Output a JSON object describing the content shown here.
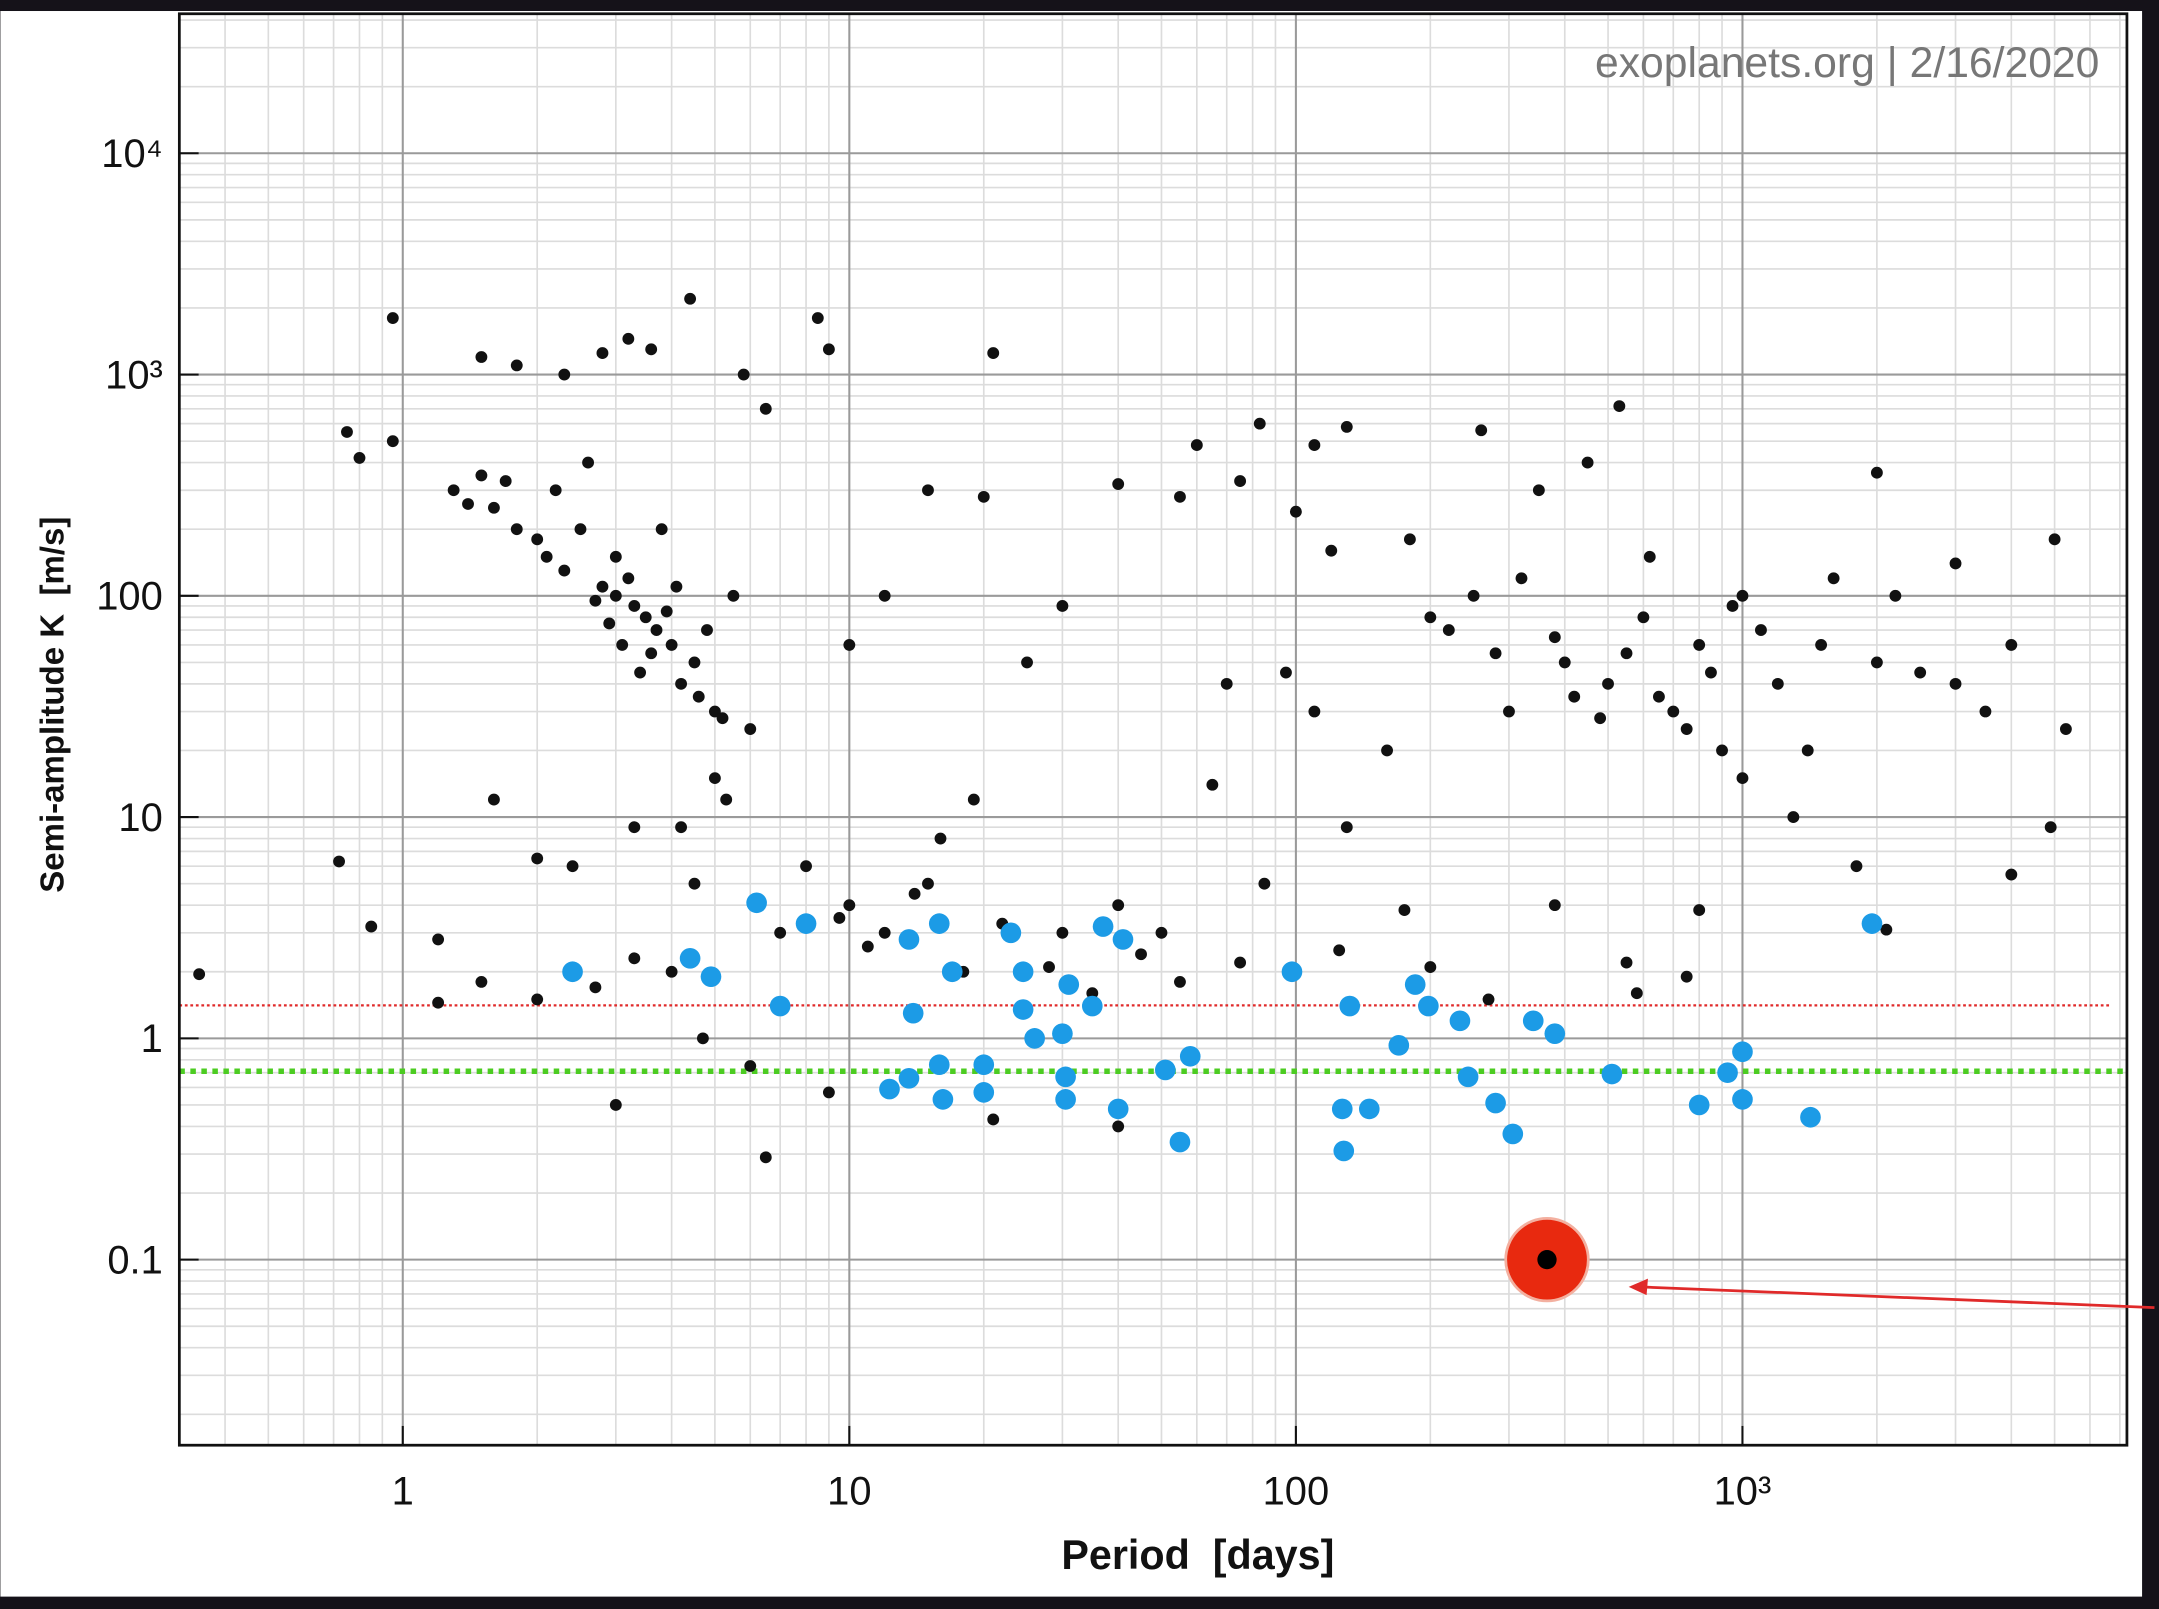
{
  "chart_data": {
    "type": "scatter",
    "annotation": "exoplanets.org | 2/16/2020",
    "x_label": "Period  [days]",
    "y_label": "Semi-amplitude K  [m/s]",
    "x_log": true,
    "y_log": true,
    "grid": true,
    "xlim": [
      0.316,
      7260
    ],
    "ylim": [
      0.0145,
      42700
    ],
    "xticks": [
      1,
      10,
      100,
      {
        "value": 1000,
        "label": "10³"
      }
    ],
    "yticks": [
      0.1,
      1,
      10,
      100,
      {
        "value": 1000,
        "label": "10³"
      },
      {
        "value": 10000,
        "label": "10⁴"
      }
    ],
    "x_minor_ticks": [
      0.4,
      0.5,
      0.6,
      0.7,
      0.8,
      0.9,
      2,
      3,
      4,
      5,
      6,
      7,
      8,
      9,
      20,
      30,
      40,
      50,
      60,
      70,
      80,
      90,
      200,
      300,
      400,
      500,
      600,
      700,
      800,
      900,
      2000,
      3000,
      4000,
      5000,
      6000,
      7000
    ],
    "y_minor_ticks": [
      0.02,
      0.03,
      0.04,
      0.05,
      0.06,
      0.07,
      0.08,
      0.09,
      0.2,
      0.3,
      0.4,
      0.5,
      0.6,
      0.7,
      0.8,
      0.9,
      2,
      3,
      4,
      5,
      6,
      7,
      8,
      9,
      20,
      30,
      40,
      50,
      60,
      70,
      80,
      90,
      200,
      300,
      400,
      500,
      600,
      700,
      800,
      900,
      2000,
      3000,
      4000,
      5000,
      6000,
      7000,
      8000,
      9000,
      20000,
      30000,
      40000
    ],
    "reference_lines": [
      {
        "value": 1.41,
        "color": "#e02a2a",
        "style": "dotted"
      },
      {
        "value": 0.71,
        "color": "#4ccc22",
        "style": "dotted"
      }
    ],
    "series": [
      {
        "color": "#111111",
        "marker": "small",
        "x": [
          3,
          3.5,
          3.2,
          4,
          2.5,
          4.5,
          3,
          3.7,
          2.2,
          1.5,
          1.3,
          2,
          5,
          4.2,
          3.3,
          2.8,
          6,
          1.8,
          2.6,
          4.8,
          3.8,
          1.6,
          5.5,
          2.3,
          3.1,
          3.4,
          3.9,
          2.9,
          4.1,
          2.1,
          1.4,
          1.7,
          3.6,
          4.6,
          5.2,
          2.7,
          0.95,
          1.5,
          1.8,
          2.3,
          2.8,
          3.2,
          3.6,
          4.4,
          5.8,
          8.5,
          9,
          21,
          0.75,
          0.95,
          0.8,
          6.5,
          83,
          530,
          10,
          12,
          15,
          20,
          25,
          30,
          40,
          55,
          60,
          75,
          110,
          130,
          260,
          100,
          120,
          95,
          160,
          70,
          65,
          110,
          400,
          500,
          600,
          700,
          800,
          1000,
          1200,
          900,
          1500,
          2000,
          3000,
          4000,
          5000,
          5300,
          4900,
          4000,
          350,
          450,
          250,
          200,
          180,
          300,
          1000,
          1300,
          1800,
          2000,
          3000,
          2200,
          1600,
          550,
          650,
          750,
          850,
          1100,
          380,
          420,
          480,
          320,
          280,
          220,
          1400,
          2500,
          3500,
          620,
          950,
          7,
          8,
          10,
          12,
          15,
          18,
          25,
          30,
          40,
          50,
          55,
          75,
          85,
          125,
          130,
          175,
          200,
          270,
          380,
          550,
          580,
          750,
          800,
          2100,
          0.72,
          0.35,
          0.85,
          1.2,
          1.6,
          2,
          2.4,
          3,
          4,
          4.7,
          6,
          6.5,
          9,
          21,
          40,
          2.7,
          3.3,
          4.2,
          5.3,
          1.2,
          1.5,
          2,
          3.3,
          4.5,
          5,
          9.5,
          11,
          14,
          22,
          28,
          35,
          45,
          16,
          19
        ],
        "y": [
          100,
          80,
          120,
          60,
          200,
          50,
          150,
          70,
          300,
          350,
          300,
          180,
          30,
          40,
          90,
          110,
          25,
          200,
          400,
          70,
          200,
          250,
          100,
          130,
          60,
          45,
          85,
          75,
          110,
          150,
          260,
          330,
          55,
          35,
          28,
          95,
          1800,
          1200,
          1100,
          1000,
          1250,
          1450,
          1300,
          2200,
          1000,
          1800,
          1300,
          1250,
          550,
          500,
          420,
          700,
          600,
          720,
          60,
          100,
          300,
          280,
          50,
          90,
          320,
          280,
          480,
          330,
          480,
          580,
          560,
          240,
          160,
          45,
          20,
          40,
          14,
          30,
          50,
          40,
          80,
          30,
          60,
          100,
          40,
          20,
          60,
          50,
          40,
          60,
          180,
          25,
          9,
          5.5,
          300,
          400,
          100,
          80,
          180,
          30,
          15,
          10,
          6,
          360,
          140,
          100,
          120,
          55,
          35,
          25,
          45,
          70,
          65,
          35,
          28,
          120,
          55,
          70,
          20,
          45,
          30,
          150,
          90,
          3,
          6,
          4,
          3,
          5,
          2,
          2,
          3,
          4,
          3,
          1.8,
          2.2,
          5,
          2.5,
          9,
          3.8,
          2.1,
          1.5,
          4,
          2.2,
          1.6,
          1.9,
          3.8,
          3.1,
          6.3,
          1.95,
          3.2,
          2.8,
          12,
          6.5,
          6,
          0.5,
          2,
          1,
          0.75,
          0.29,
          0.57,
          0.43,
          0.4,
          1.7,
          9,
          9,
          12,
          1.45,
          1.8,
          1.5,
          2.3,
          5,
          15,
          3.5,
          2.6,
          4.5,
          3.3,
          2.1,
          1.6,
          2.4,
          8,
          12
        ]
      },
      {
        "color": "#1c9be6",
        "marker": "large",
        "x": [
          2.4,
          4.4,
          4.9,
          6.2,
          7,
          8,
          13.6,
          13.6,
          13.9,
          12.3,
          15.9,
          15.9,
          16.2,
          17,
          20,
          20,
          23,
          24.5,
          24.5,
          26,
          30,
          31,
          30.5,
          30.5,
          35,
          37,
          41,
          40,
          51,
          55,
          58,
          98,
          127,
          128,
          132,
          146,
          170,
          185,
          198,
          233,
          243,
          280,
          306,
          340,
          380,
          510,
          800,
          926,
          1000,
          1000,
          1420,
          1950
        ],
        "y": [
          2,
          2.3,
          1.9,
          4.1,
          1.4,
          3.3,
          2.8,
          0.66,
          1.3,
          0.59,
          3.3,
          0.76,
          0.53,
          2,
          0.76,
          0.57,
          3,
          2,
          1.35,
          1,
          1.05,
          1.75,
          0.67,
          0.53,
          1.4,
          3.2,
          2.8,
          0.48,
          0.72,
          0.34,
          0.83,
          2,
          0.48,
          0.31,
          1.4,
          0.48,
          0.93,
          1.75,
          1.4,
          1.2,
          0.67,
          0.51,
          0.37,
          1.2,
          1.05,
          0.69,
          0.5,
          0.7,
          0.87,
          0.53,
          0.44,
          3.3
        ]
      },
      {
        "color": "#e8290f",
        "marker": "earth",
        "x": [
          365
        ],
        "y": [
          0.1
        ]
      }
    ]
  }
}
